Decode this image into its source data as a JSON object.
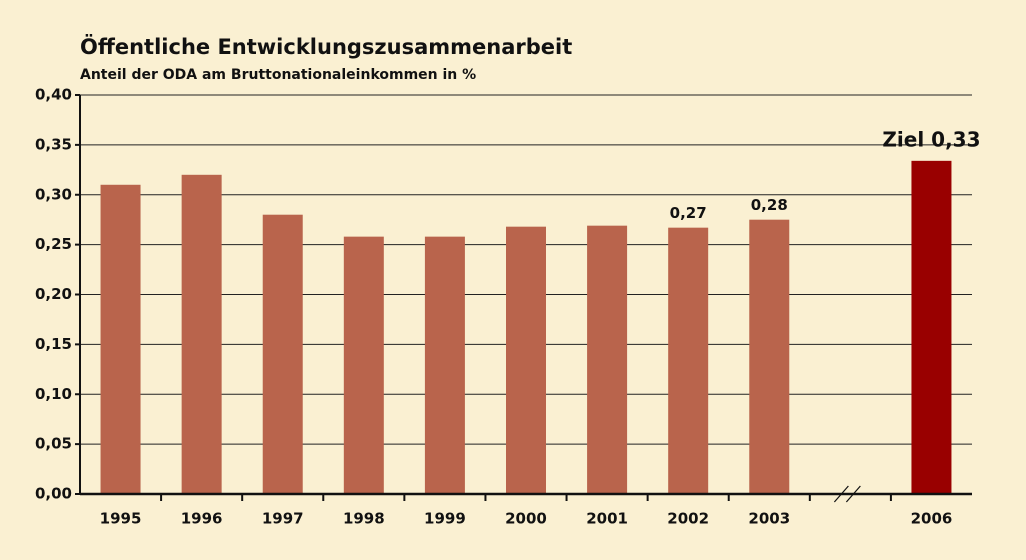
{
  "chart_data": {
    "type": "bar",
    "title": "Öffentliche Entwicklungszusammenarbeit",
    "subtitle": "Anteil der ODA am Bruttonationaleinkommen in %",
    "categories": [
      "1995",
      "1996",
      "1997",
      "1998",
      "1999",
      "2000",
      "2001",
      "2002",
      "2003",
      null,
      "2006"
    ],
    "values": [
      0.31,
      0.32,
      0.28,
      0.258,
      0.258,
      0.268,
      0.269,
      0.267,
      0.275,
      null,
      0.334
    ],
    "value_labels": [
      null,
      null,
      null,
      null,
      null,
      null,
      null,
      "0,27",
      "0,28",
      null,
      "Ziel 0,33"
    ],
    "colors": [
      "#b9644c",
      "#b9644c",
      "#b9644c",
      "#b9644c",
      "#b9644c",
      "#b9644c",
      "#b9644c",
      "#b9644c",
      "#b9644c",
      null,
      "#990000"
    ],
    "ylim": [
      0,
      0.4
    ],
    "yticks": [
      {
        "value": 0,
        "label": "0,00"
      },
      {
        "value": 0.05,
        "label": "0,05"
      },
      {
        "value": 0.1,
        "label": "0,10"
      },
      {
        "value": 0.15,
        "label": "0,15"
      },
      {
        "value": 0.2,
        "label": "0,20"
      },
      {
        "value": 0.25,
        "label": "0,25"
      },
      {
        "value": 0.3,
        "label": "0,30"
      },
      {
        "value": 0.35,
        "label": "0,35"
      },
      {
        "value": 0.4,
        "label": "0,40"
      }
    ],
    "grid": true
  }
}
